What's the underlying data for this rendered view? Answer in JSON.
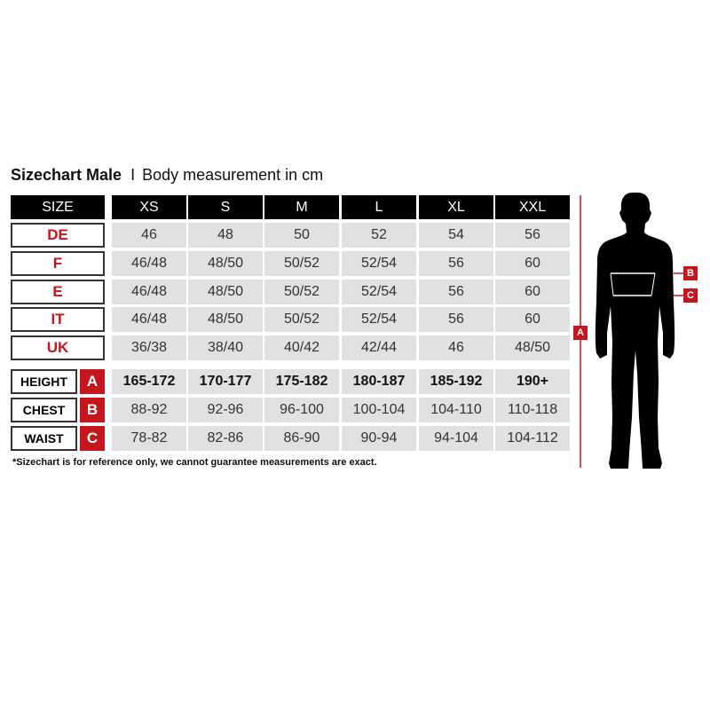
{
  "title": {
    "main": "Sizechart Male",
    "separator": "I",
    "subtitle": "Body measurement in cm"
  },
  "header": {
    "label": "SIZE",
    "sizes": [
      "XS",
      "S",
      "M",
      "L",
      "XL",
      "XXL"
    ]
  },
  "size_rows": [
    {
      "label": "DE",
      "values": [
        "46",
        "48",
        "50",
        "52",
        "54",
        "56"
      ]
    },
    {
      "label": "F",
      "values": [
        "46/48",
        "48/50",
        "50/52",
        "52/54",
        "56",
        "60"
      ]
    },
    {
      "label": "E",
      "values": [
        "46/48",
        "48/50",
        "50/52",
        "52/54",
        "56",
        "60"
      ]
    },
    {
      "label": "IT",
      "values": [
        "46/48",
        "48/50",
        "50/52",
        "52/54",
        "56",
        "60"
      ]
    },
    {
      "label": "UK",
      "values": [
        "36/38",
        "38/40",
        "40/42",
        "42/44",
        "46",
        "48/50"
      ]
    }
  ],
  "measure_rows": [
    {
      "label": "HEIGHT",
      "badge": "A",
      "values": [
        "165-172",
        "170-177",
        "175-182",
        "180-187",
        "185-192",
        "190+"
      ]
    },
    {
      "label": "CHEST",
      "badge": "B",
      "values": [
        "88-92",
        "92-96",
        "96-100",
        "100-104",
        "104-110",
        "110-118"
      ]
    },
    {
      "label": "WAIST",
      "badge": "C",
      "values": [
        "78-82",
        "82-86",
        "86-90",
        "90-94",
        "94-104",
        "104-112"
      ]
    }
  ],
  "footnote": "*Sizechart is for reference only, we cannot guarantee measurements are exact.",
  "figure": {
    "height_marker": "A",
    "chest_marker": "B",
    "waist_marker": "C"
  },
  "colors": {
    "accent": "#c4161c",
    "header_bg": "#000000",
    "cell_bg": "#e1e1e1"
  }
}
